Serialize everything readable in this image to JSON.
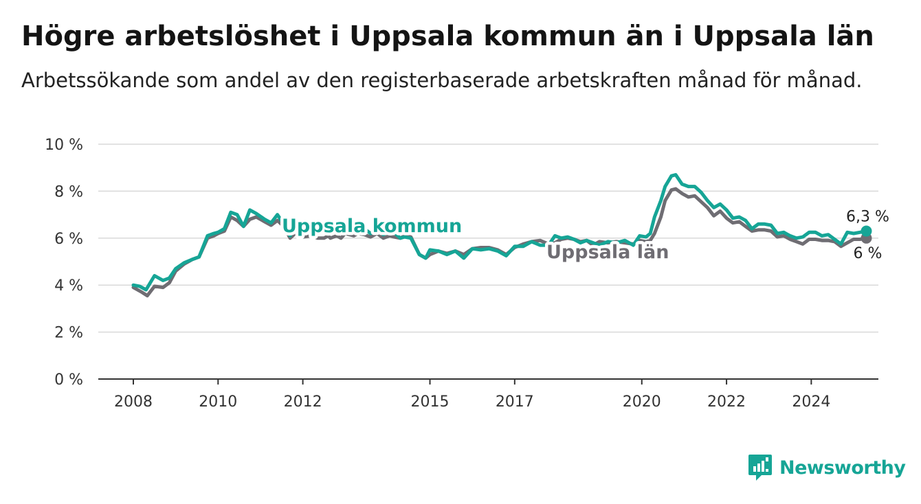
{
  "title": "Högre arbetslöshet i Uppsala kommun än i Uppsala län",
  "subtitle": "Arbetssökande som andel av den registerbaserade arbetskraften månad för månad.",
  "brand": {
    "name": "Newsworthy",
    "icon": "newsworthy-logo-icon",
    "color": "#16a596"
  },
  "chart_data": {
    "type": "line",
    "title": "Högre arbetslöshet i Uppsala kommun än i Uppsala län",
    "subtitle": "Arbetssökande som andel av den registerbaserade arbetskraften månad för månad.",
    "xlabel": "",
    "ylabel": "",
    "xlim": [
      2008,
      2025.75
    ],
    "ylim": [
      0,
      10
    ],
    "y_ticks": [
      0,
      2,
      4,
      6,
      8,
      10
    ],
    "y_tick_labels": [
      "0 %",
      "2 %",
      "4 %",
      "6 %",
      "8 %",
      "10 %"
    ],
    "x_ticks": [
      2008,
      2010,
      2012,
      2015,
      2017,
      2020,
      2022,
      2024
    ],
    "x_tick_labels": [
      "2008",
      "2010",
      "2012",
      "2015",
      "2017",
      "2020",
      "2022",
      "2024"
    ],
    "grid": true,
    "legend": "inline labels",
    "series": [
      {
        "name": "Uppsala län",
        "color": "#6f6d73",
        "end_label": "6 %",
        "points": [
          [
            2008.0,
            3.9
          ],
          [
            2008.2,
            3.7
          ],
          [
            2008.33,
            3.55
          ],
          [
            2008.5,
            3.95
          ],
          [
            2008.7,
            3.9
          ],
          [
            2008.85,
            4.1
          ],
          [
            2009.0,
            4.6
          ],
          [
            2009.2,
            4.9
          ],
          [
            2009.4,
            5.1
          ],
          [
            2009.55,
            5.2
          ],
          [
            2009.75,
            6.0
          ],
          [
            2009.9,
            6.1
          ],
          [
            2010.0,
            6.2
          ],
          [
            2010.15,
            6.3
          ],
          [
            2010.3,
            6.9
          ],
          [
            2010.45,
            6.75
          ],
          [
            2010.6,
            6.5
          ],
          [
            2010.75,
            6.8
          ],
          [
            2010.9,
            6.9
          ],
          [
            2011.1,
            6.7
          ],
          [
            2011.25,
            6.55
          ],
          [
            2011.4,
            6.75
          ],
          [
            2011.55,
            6.5
          ],
          [
            2011.7,
            6.0
          ],
          [
            2011.85,
            6.25
          ],
          [
            2012.0,
            6.05
          ],
          [
            2012.2,
            6.1
          ],
          [
            2012.35,
            6.0
          ],
          [
            2012.5,
            6.0
          ],
          [
            2012.6,
            6.1
          ],
          [
            2012.65,
            6.0
          ],
          [
            2012.8,
            6.1
          ],
          [
            2012.9,
            6.0
          ],
          [
            2013.0,
            6.2
          ],
          [
            2013.2,
            6.1
          ],
          [
            2013.3,
            6.2
          ],
          [
            2013.45,
            6.15
          ],
          [
            2013.6,
            6.05
          ],
          [
            2013.75,
            6.2
          ],
          [
            2013.9,
            6.0
          ],
          [
            2014.05,
            6.1
          ],
          [
            2014.15,
            6.05
          ],
          [
            2014.3,
            6.0
          ],
          [
            2014.4,
            6.1
          ],
          [
            2014.55,
            6.05
          ],
          [
            2014.75,
            5.3
          ],
          [
            2014.9,
            5.15
          ],
          [
            2015.0,
            5.3
          ],
          [
            2015.2,
            5.45
          ],
          [
            2015.4,
            5.35
          ],
          [
            2015.6,
            5.45
          ],
          [
            2015.8,
            5.3
          ],
          [
            2016.0,
            5.55
          ],
          [
            2016.2,
            5.6
          ],
          [
            2016.4,
            5.6
          ],
          [
            2016.6,
            5.5
          ],
          [
            2016.8,
            5.3
          ],
          [
            2017.0,
            5.6
          ],
          [
            2017.2,
            5.75
          ],
          [
            2017.4,
            5.85
          ],
          [
            2017.6,
            5.9
          ],
          [
            2017.8,
            5.75
          ],
          [
            2017.95,
            5.8
          ],
          [
            2018.1,
            5.95
          ],
          [
            2018.25,
            6.0
          ],
          [
            2018.4,
            5.95
          ],
          [
            2018.55,
            5.85
          ],
          [
            2018.7,
            5.9
          ],
          [
            2018.85,
            5.7
          ],
          [
            2019.0,
            5.85
          ],
          [
            2019.2,
            5.8
          ],
          [
            2019.4,
            5.85
          ],
          [
            2019.6,
            5.8
          ],
          [
            2019.8,
            5.75
          ],
          [
            2019.95,
            5.9
          ],
          [
            2020.1,
            5.85
          ],
          [
            2020.2,
            5.9
          ],
          [
            2020.3,
            6.2
          ],
          [
            2020.45,
            6.9
          ],
          [
            2020.55,
            7.6
          ],
          [
            2020.7,
            8.05
          ],
          [
            2020.8,
            8.1
          ],
          [
            2020.95,
            7.9
          ],
          [
            2021.1,
            7.75
          ],
          [
            2021.25,
            7.8
          ],
          [
            2021.4,
            7.55
          ],
          [
            2021.55,
            7.3
          ],
          [
            2021.7,
            6.95
          ],
          [
            2021.85,
            7.15
          ],
          [
            2022.0,
            6.85
          ],
          [
            2022.15,
            6.65
          ],
          [
            2022.3,
            6.7
          ],
          [
            2022.45,
            6.5
          ],
          [
            2022.6,
            6.3
          ],
          [
            2022.75,
            6.35
          ],
          [
            2022.9,
            6.35
          ],
          [
            2023.05,
            6.3
          ],
          [
            2023.2,
            6.05
          ],
          [
            2023.35,
            6.1
          ],
          [
            2023.5,
            5.95
          ],
          [
            2023.65,
            5.85
          ],
          [
            2023.8,
            5.75
          ],
          [
            2023.95,
            5.95
          ],
          [
            2024.1,
            5.95
          ],
          [
            2024.25,
            5.9
          ],
          [
            2024.4,
            5.9
          ],
          [
            2024.55,
            5.85
          ],
          [
            2024.7,
            5.65
          ],
          [
            2024.85,
            5.8
          ],
          [
            2025.0,
            5.95
          ],
          [
            2025.15,
            5.95
          ],
          [
            2025.3,
            6.0
          ]
        ]
      },
      {
        "name": "Uppsala kommun",
        "color": "#16a596",
        "end_label": "6,3 %",
        "points": [
          [
            2008.0,
            4.0
          ],
          [
            2008.15,
            3.95
          ],
          [
            2008.3,
            3.8
          ],
          [
            2008.5,
            4.4
          ],
          [
            2008.7,
            4.2
          ],
          [
            2008.85,
            4.3
          ],
          [
            2009.0,
            4.7
          ],
          [
            2009.2,
            4.95
          ],
          [
            2009.4,
            5.1
          ],
          [
            2009.55,
            5.2
          ],
          [
            2009.75,
            6.1
          ],
          [
            2009.9,
            6.2
          ],
          [
            2010.0,
            6.25
          ],
          [
            2010.15,
            6.4
          ],
          [
            2010.3,
            7.1
          ],
          [
            2010.45,
            7.0
          ],
          [
            2010.6,
            6.5
          ],
          [
            2010.75,
            7.2
          ],
          [
            2010.9,
            7.05
          ],
          [
            2011.1,
            6.8
          ],
          [
            2011.25,
            6.65
          ],
          [
            2011.4,
            7.0
          ],
          [
            2011.55,
            6.6
          ],
          [
            2011.7,
            6.1
          ],
          [
            2011.85,
            6.6
          ],
          [
            2012.0,
            6.3
          ],
          [
            2012.2,
            6.4
          ],
          [
            2012.35,
            6.3
          ],
          [
            2012.5,
            6.3
          ],
          [
            2012.6,
            6.4
          ],
          [
            2012.65,
            6.3
          ],
          [
            2012.8,
            6.45
          ],
          [
            2012.9,
            6.3
          ],
          [
            2013.0,
            6.5
          ],
          [
            2013.2,
            6.35
          ],
          [
            2013.3,
            6.5
          ],
          [
            2013.45,
            6.4
          ],
          [
            2013.6,
            6.2
          ],
          [
            2013.75,
            6.45
          ],
          [
            2013.9,
            6.15
          ],
          [
            2014.05,
            6.3
          ],
          [
            2014.15,
            6.25
          ],
          [
            2014.3,
            6.0
          ],
          [
            2014.4,
            6.05
          ],
          [
            2014.55,
            6.0
          ],
          [
            2014.75,
            5.3
          ],
          [
            2014.9,
            5.15
          ],
          [
            2015.0,
            5.5
          ],
          [
            2015.2,
            5.45
          ],
          [
            2015.4,
            5.3
          ],
          [
            2015.6,
            5.45
          ],
          [
            2015.8,
            5.15
          ],
          [
            2016.0,
            5.55
          ],
          [
            2016.2,
            5.5
          ],
          [
            2016.4,
            5.55
          ],
          [
            2016.6,
            5.45
          ],
          [
            2016.8,
            5.25
          ],
          [
            2017.0,
            5.65
          ],
          [
            2017.2,
            5.65
          ],
          [
            2017.4,
            5.85
          ],
          [
            2017.6,
            5.7
          ],
          [
            2017.8,
            5.7
          ],
          [
            2017.95,
            6.1
          ],
          [
            2018.1,
            6.0
          ],
          [
            2018.25,
            6.05
          ],
          [
            2018.4,
            5.95
          ],
          [
            2018.55,
            5.8
          ],
          [
            2018.7,
            5.9
          ],
          [
            2018.85,
            5.8
          ],
          [
            2019.0,
            5.7
          ],
          [
            2019.2,
            5.85
          ],
          [
            2019.4,
            5.8
          ],
          [
            2019.6,
            5.9
          ],
          [
            2019.8,
            5.7
          ],
          [
            2019.95,
            6.1
          ],
          [
            2020.1,
            6.05
          ],
          [
            2020.2,
            6.2
          ],
          [
            2020.3,
            6.9
          ],
          [
            2020.45,
            7.6
          ],
          [
            2020.55,
            8.2
          ],
          [
            2020.7,
            8.65
          ],
          [
            2020.8,
            8.7
          ],
          [
            2020.95,
            8.3
          ],
          [
            2021.1,
            8.2
          ],
          [
            2021.25,
            8.2
          ],
          [
            2021.4,
            7.95
          ],
          [
            2021.55,
            7.6
          ],
          [
            2021.7,
            7.3
          ],
          [
            2021.85,
            7.45
          ],
          [
            2022.0,
            7.2
          ],
          [
            2022.15,
            6.85
          ],
          [
            2022.3,
            6.9
          ],
          [
            2022.45,
            6.75
          ],
          [
            2022.6,
            6.4
          ],
          [
            2022.75,
            6.6
          ],
          [
            2022.9,
            6.6
          ],
          [
            2023.05,
            6.55
          ],
          [
            2023.2,
            6.2
          ],
          [
            2023.35,
            6.25
          ],
          [
            2023.5,
            6.1
          ],
          [
            2023.65,
            6.0
          ],
          [
            2023.8,
            6.05
          ],
          [
            2023.95,
            6.25
          ],
          [
            2024.1,
            6.25
          ],
          [
            2024.25,
            6.1
          ],
          [
            2024.4,
            6.15
          ],
          [
            2024.55,
            5.95
          ],
          [
            2024.7,
            5.75
          ],
          [
            2024.85,
            6.25
          ],
          [
            2025.0,
            6.2
          ],
          [
            2025.15,
            6.25
          ],
          [
            2025.3,
            6.3
          ]
        ]
      }
    ]
  }
}
